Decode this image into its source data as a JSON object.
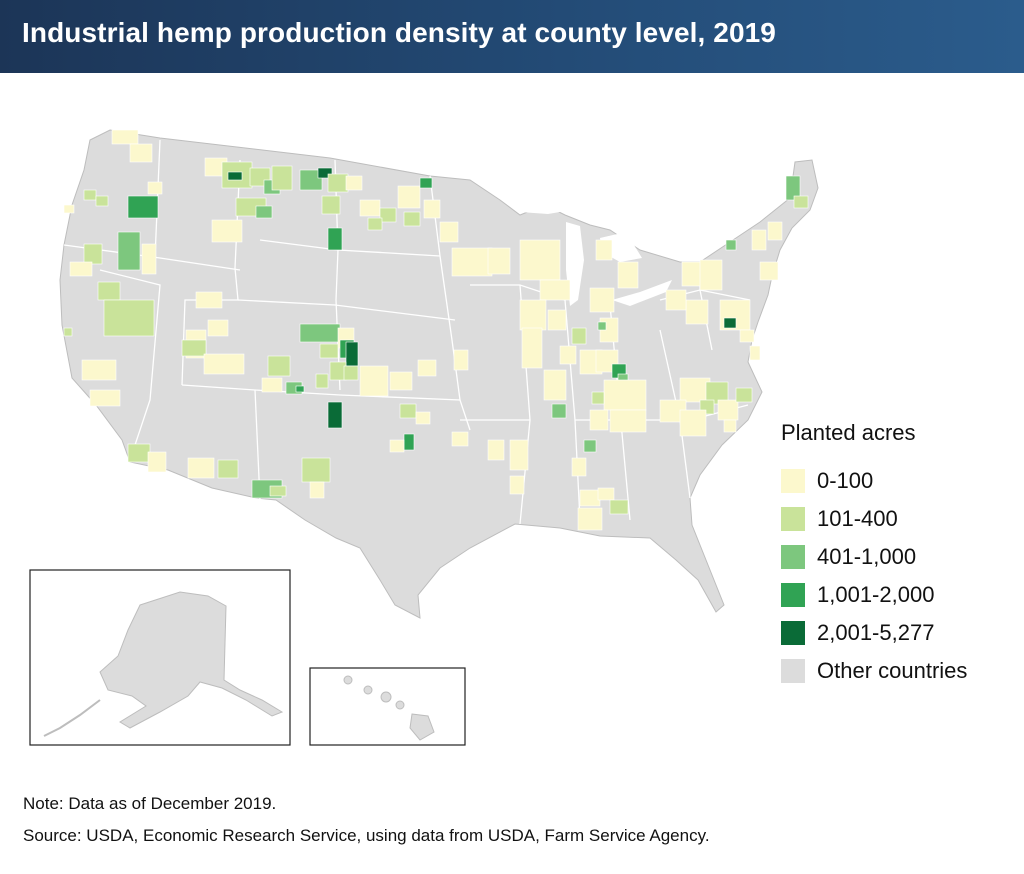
{
  "title": "Industrial hemp production density at county level, 2019",
  "legend": {
    "title": "Planted acres",
    "items": [
      {
        "label": "0-100",
        "color": "#fcf8cd"
      },
      {
        "label": "101-400",
        "color": "#c9e39a"
      },
      {
        "label": "401-1,000",
        "color": "#7dc77e"
      },
      {
        "label": "1,001-2,000",
        "color": "#30a354"
      },
      {
        "label": "2,001-5,277",
        "color": "#0a6b37"
      },
      {
        "label": "Other countries",
        "color": "#dcdcdc"
      }
    ]
  },
  "base_color": "#dcdcdc",
  "border_color": "#ffffff",
  "note": "Note: Data as of December 2019.",
  "source": "Source: USDA, Economic Research Service, using data from USDA, Farm Service Agency."
}
